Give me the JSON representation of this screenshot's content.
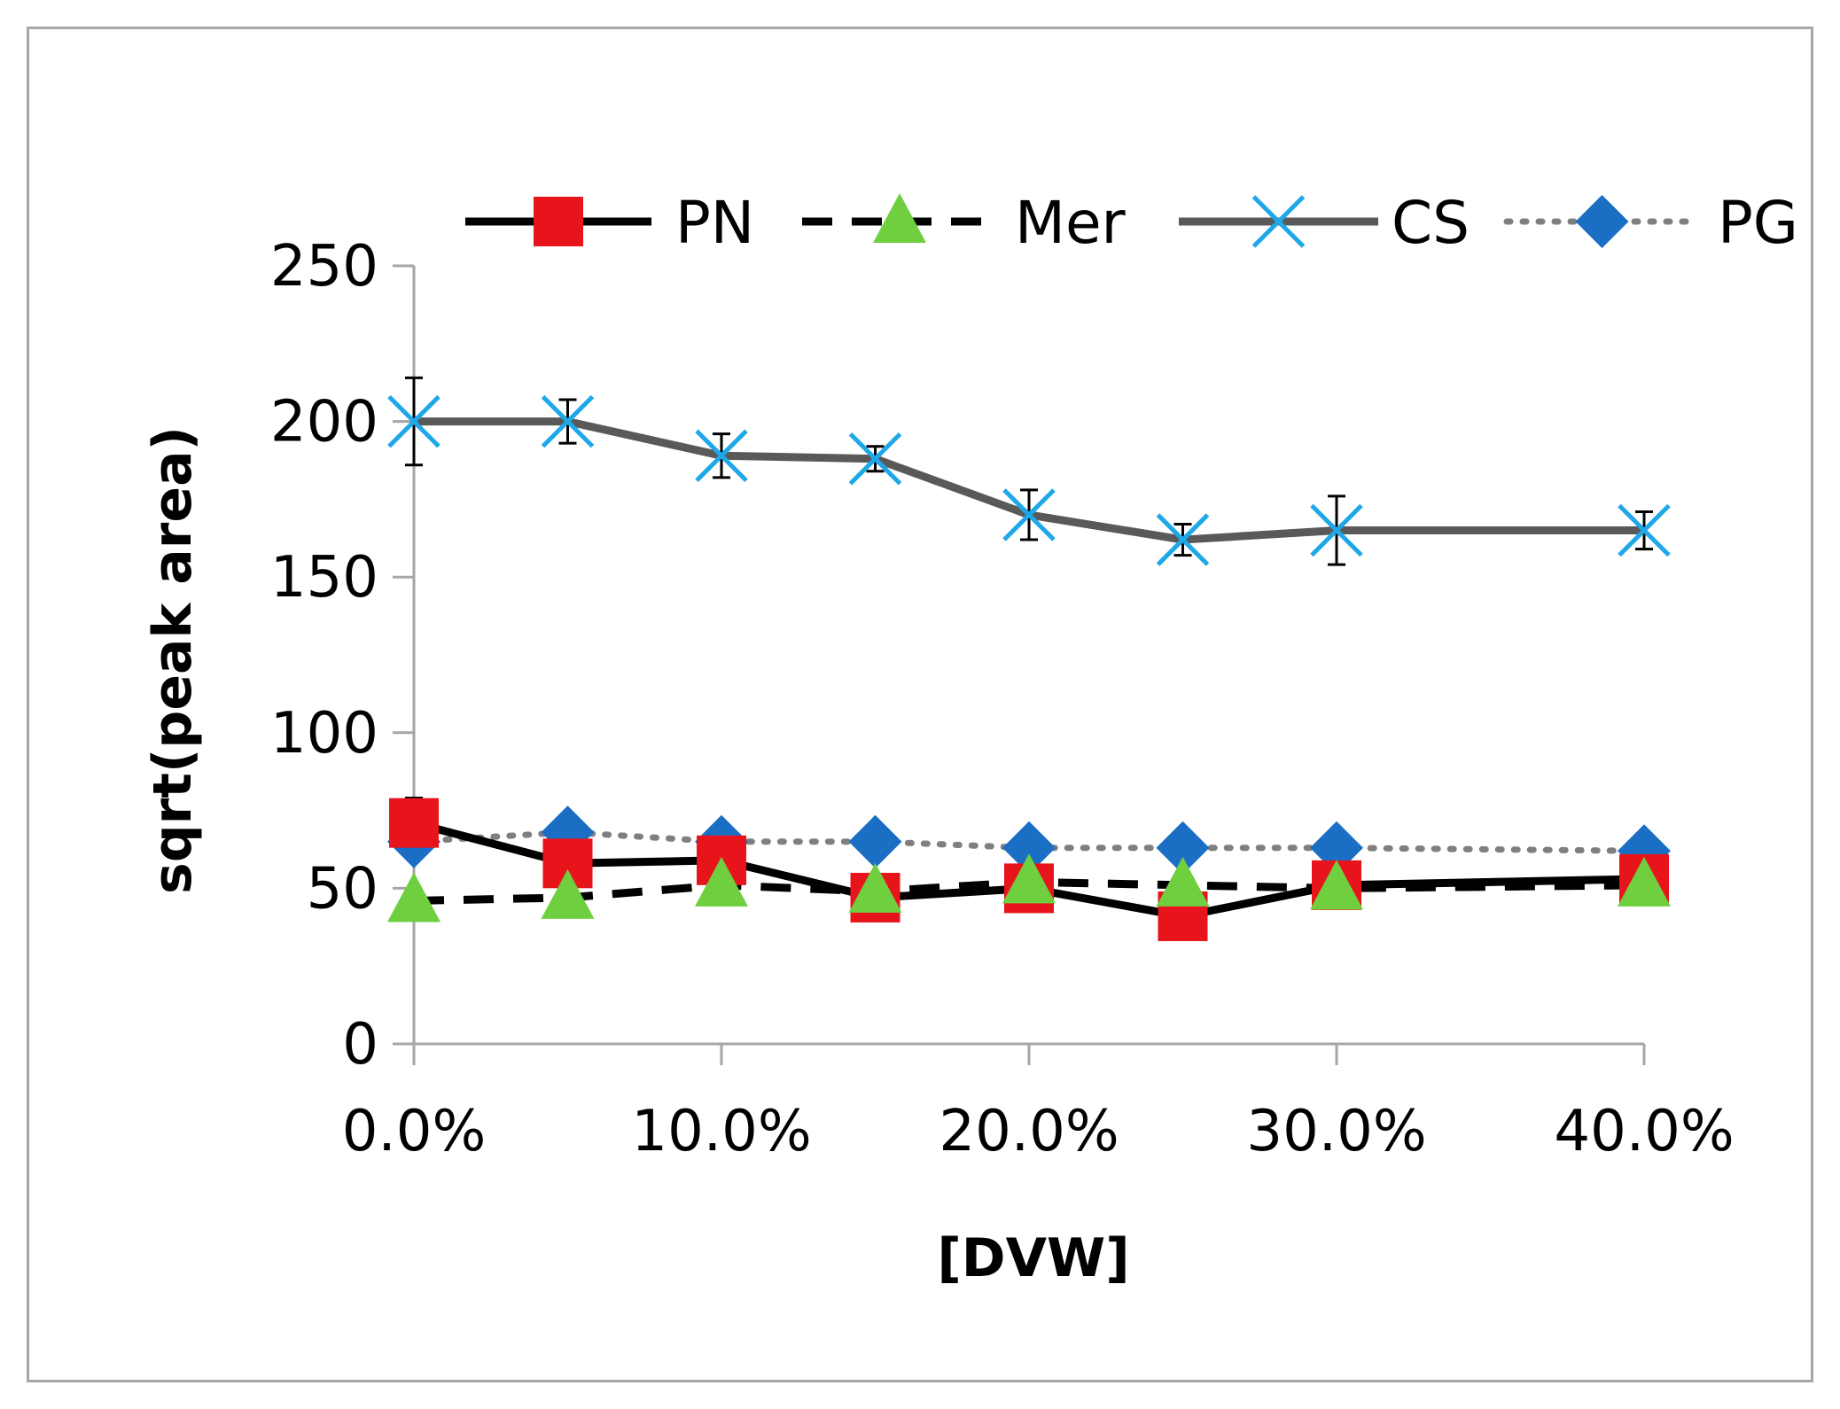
{
  "chart_data": {
    "type": "line",
    "title": "",
    "xlabel": "[DVW]",
    "ylabel": "sqrt(peak area)",
    "x": [
      0,
      5,
      10,
      15,
      20,
      25,
      30,
      40
    ],
    "x_tick_values": [
      0,
      10,
      20,
      30,
      40
    ],
    "x_tick_labels": [
      "0.0%",
      "10.0%",
      "20.0%",
      "30.0%",
      "40.0%"
    ],
    "xlim": [
      0,
      40
    ],
    "ylim": [
      0,
      250
    ],
    "y_ticks": [
      0,
      50,
      100,
      150,
      200,
      250
    ],
    "y_tick_labels": [
      "0",
      "50",
      "100",
      "150",
      "200",
      "250"
    ],
    "grid": false,
    "legend_position": "top",
    "series": [
      {
        "name": "PN",
        "values": [
          71,
          58,
          59,
          47,
          50,
          41,
          51,
          53
        ],
        "errors": [
          8,
          3,
          3,
          3,
          3,
          3,
          3,
          3
        ],
        "line_style": "solid",
        "line_color": "#000000",
        "marker": "square",
        "marker_color": "#e8141c"
      },
      {
        "name": "Mer",
        "values": [
          46,
          47,
          51,
          49,
          52,
          51,
          50,
          51
        ],
        "errors": [
          3,
          4,
          3,
          3,
          3,
          3,
          3,
          3
        ],
        "line_style": "dashed",
        "line_color": "#000000",
        "marker": "triangle",
        "marker_color": "#6fcf3f"
      },
      {
        "name": "CS",
        "values": [
          200,
          200,
          189,
          188,
          170,
          162,
          165,
          165
        ],
        "errors": [
          14,
          7,
          7,
          4,
          8,
          5,
          11,
          6
        ],
        "line_style": "solid",
        "line_color": "#595959",
        "marker": "x",
        "marker_color": "#1fa8e8"
      },
      {
        "name": "PG",
        "values": [
          65,
          68,
          65,
          65,
          63,
          63,
          63,
          62
        ],
        "errors": [
          3,
          3,
          3,
          3,
          3,
          3,
          3,
          3
        ],
        "line_style": "dotted",
        "line_color": "#7f7f7f",
        "marker": "diamond",
        "marker_color": "#1a6fc4"
      }
    ]
  }
}
